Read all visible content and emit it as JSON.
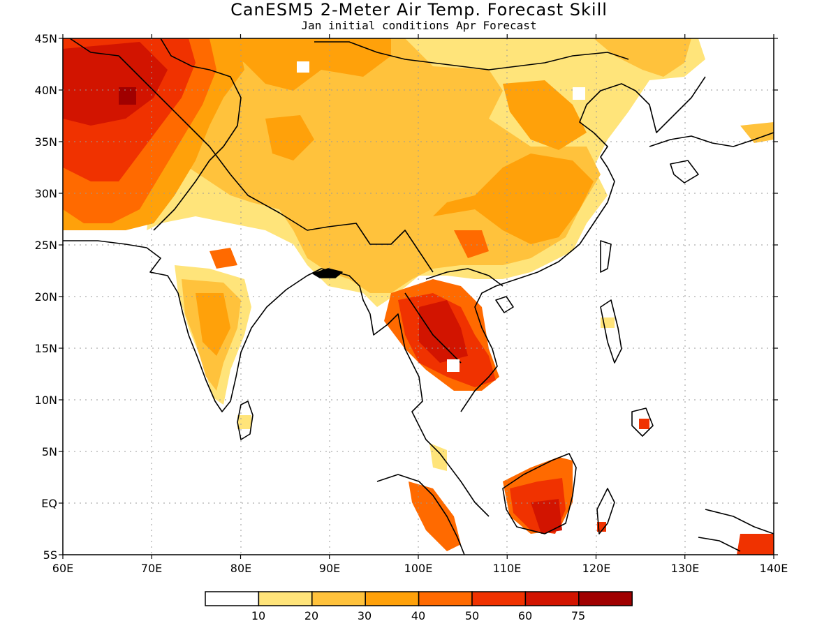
{
  "header": {
    "title": "CanESM5 2-Meter Air Temp. Forecast Skill",
    "subtitle": "Jan initial conditions  Apr Forecast"
  },
  "map": {
    "lon_ticks": [
      "60E",
      "70E",
      "80E",
      "90E",
      "100E",
      "110E",
      "120E",
      "130E",
      "140E"
    ],
    "lat_ticks": [
      "45N",
      "40N",
      "35N",
      "30N",
      "25N",
      "20N",
      "15N",
      "10N",
      "5N",
      "EQ",
      "5S"
    ],
    "extent": {
      "lon": [
        60,
        140
      ],
      "lat": [
        -5,
        45
      ]
    },
    "grid": "dotted",
    "coastline_color": "#000000"
  },
  "colorbar": {
    "labels": [
      "10",
      "20",
      "30",
      "40",
      "50",
      "60",
      "75"
    ],
    "colors": [
      "#ffffff",
      "#ffe47a",
      "#ffc23c",
      "#ffa10a",
      "#ff6a00",
      "#f03200",
      "#d21400",
      "#a00000"
    ]
  }
}
